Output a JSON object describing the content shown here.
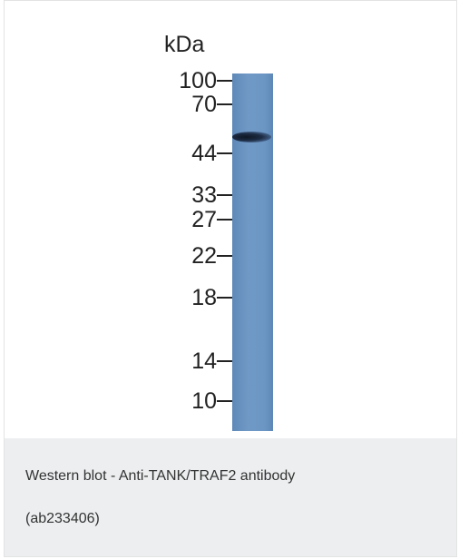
{
  "figure": {
    "unit_label": "kDa",
    "markers": [
      "100",
      "70",
      "44",
      "33",
      "27",
      "22",
      "18",
      "14",
      "10"
    ]
  },
  "caption": {
    "lines": [
      "Western blot - Anti-TANK/TRAF2 antibody",
      "(ab233406)"
    ]
  }
}
